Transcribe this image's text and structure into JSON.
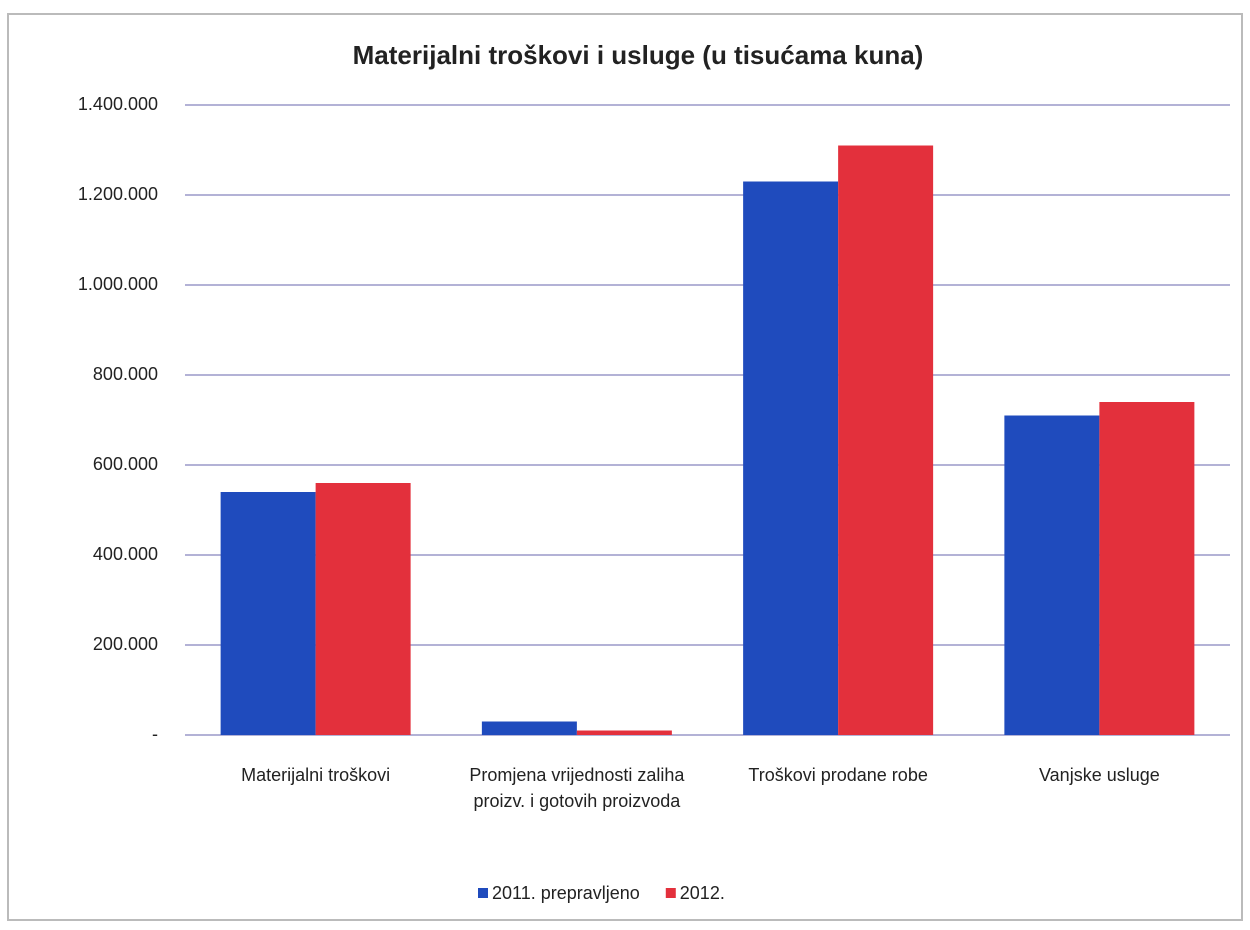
{
  "chart_data": {
    "type": "bar",
    "title": "Materijalni troškovi i usluge (u tisućama kuna)",
    "categories": [
      "Materijalni troškovi",
      "Promjena vrijednosti zaliha proizv. i gotovih proizvoda",
      "Troškovi prodane robe",
      "Vanjske usluge"
    ],
    "series": [
      {
        "name": "2011. prepravljeno",
        "color": "#1f4bbd",
        "values": [
          540000,
          30000,
          1230000,
          710000
        ]
      },
      {
        "name": "2012.",
        "color": "#e3303c",
        "values": [
          560000,
          10000,
          1310000,
          740000
        ]
      }
    ],
    "ylim": [
      0,
      1400000
    ],
    "yticks": [
      {
        "value": 0,
        "label": "-"
      },
      {
        "value": 200000,
        "label": "200.000"
      },
      {
        "value": 400000,
        "label": "400.000"
      },
      {
        "value": 600000,
        "label": "600.000"
      },
      {
        "value": 800000,
        "label": "800.000"
      },
      {
        "value": 1000000,
        "label": "1.000.000"
      },
      {
        "value": 1200000,
        "label": "1.200.000"
      },
      {
        "value": 1400000,
        "label": "1.400.000"
      }
    ],
    "grid": true,
    "legend": "bottom"
  }
}
